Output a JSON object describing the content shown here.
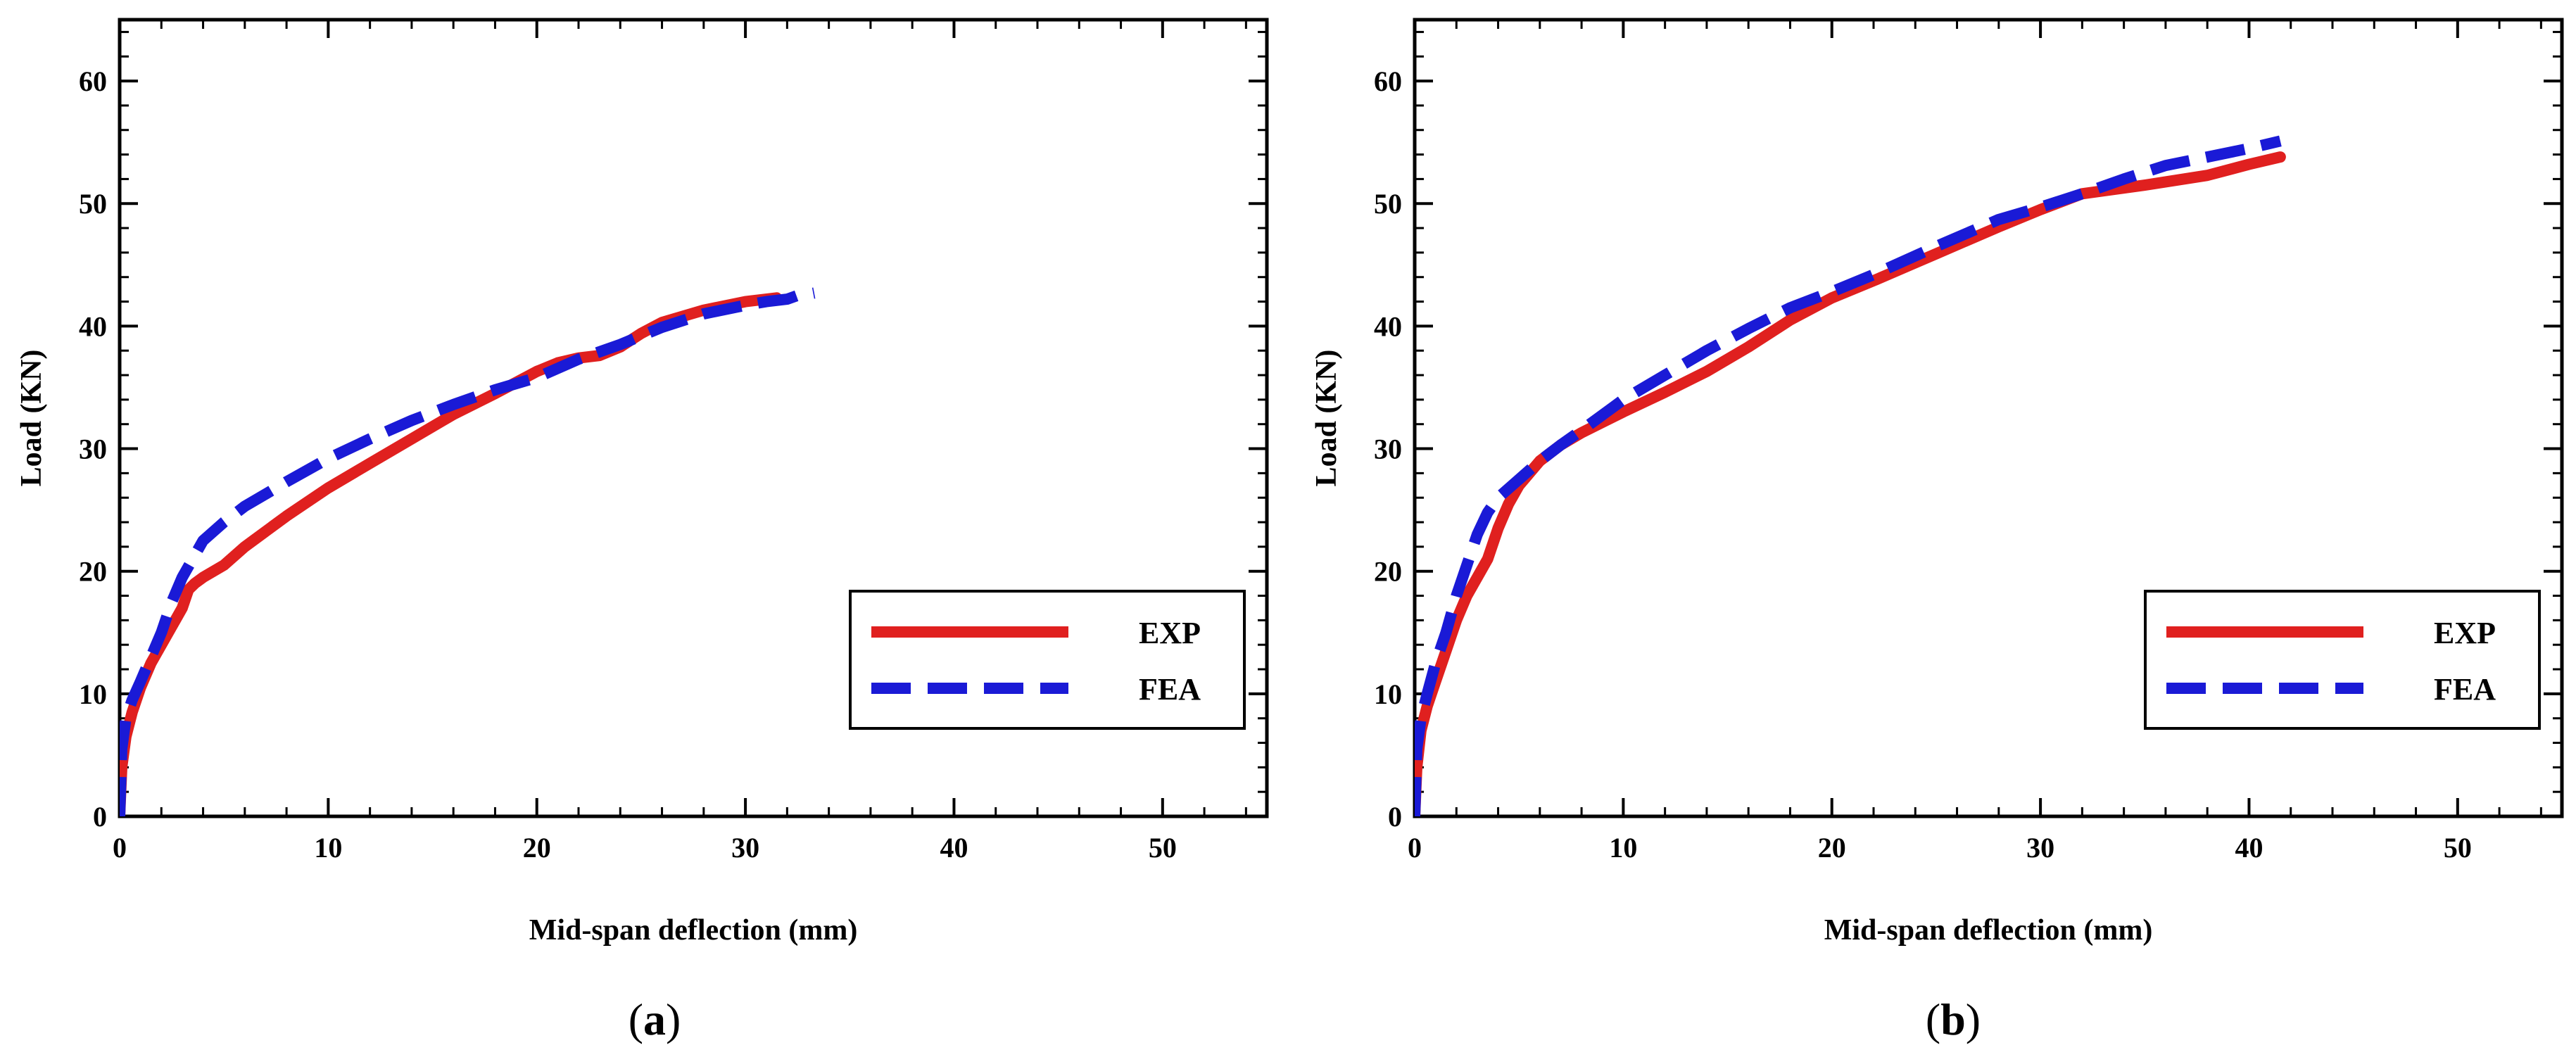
{
  "chart_data": [
    {
      "type": "line",
      "caption_letter": "a",
      "caption_open": "(",
      "caption_close": ")",
      "title": "",
      "xlabel": "Mid-span deflection (mm)",
      "ylabel": "Load (KN)",
      "xlim": [
        0,
        55
      ],
      "ylim": [
        0,
        65
      ],
      "xticks": [
        0,
        10,
        20,
        30,
        40,
        50
      ],
      "yticks": [
        0,
        10,
        20,
        30,
        40,
        50,
        60
      ],
      "legend_position": "lower-right",
      "series": [
        {
          "name": "EXP",
          "color": "#e0201f",
          "style": "solid",
          "x": [
            0,
            0.1,
            0.3,
            0.6,
            1.0,
            1.5,
            2.0,
            2.5,
            3.0,
            3.3,
            3.6,
            4.0,
            5.0,
            6.0,
            8.0,
            10.0,
            12.0,
            14.0,
            16.0,
            18.0,
            20.0,
            21.0,
            22.0,
            23.0,
            24.0,
            25.0,
            26.0,
            28.0,
            30.0,
            31.5
          ],
          "y": [
            0,
            4.0,
            6.5,
            8.5,
            10.5,
            12.5,
            14.0,
            15.5,
            17.0,
            18.5,
            19.0,
            19.5,
            20.5,
            22.0,
            24.5,
            26.8,
            28.8,
            30.8,
            32.8,
            34.5,
            36.3,
            37.0,
            37.4,
            37.6,
            38.3,
            39.4,
            40.3,
            41.3,
            42.0,
            42.3
          ]
        },
        {
          "name": "FEA",
          "color": "#1a1ad6",
          "style": "dashed",
          "x": [
            0,
            0.1,
            0.3,
            0.6,
            1.0,
            1.5,
            2.0,
            2.5,
            3.0,
            3.5,
            4.0,
            5.0,
            6.0,
            8.0,
            10.0,
            12.0,
            14.0,
            16.0,
            18.0,
            20.0,
            22.0,
            24.0,
            26.0,
            28.0,
            30.0,
            31.0,
            32.0,
            32.5,
            33.0,
            33.3
          ],
          "y": [
            0,
            5.5,
            8.0,
            9.5,
            11.0,
            13.0,
            15.0,
            17.5,
            19.5,
            21.0,
            22.5,
            24.0,
            25.3,
            27.3,
            29.2,
            30.8,
            32.3,
            33.6,
            34.8,
            35.8,
            37.3,
            38.5,
            39.9,
            41.0,
            41.7,
            42.0,
            42.2,
            42.5,
            42.6,
            42.7
          ]
        }
      ]
    },
    {
      "type": "line",
      "caption_letter": "b",
      "caption_open": "(",
      "caption_close": ")",
      "title": "",
      "xlabel": "Mid-span deflection (mm)",
      "ylabel": "Load (KN)",
      "xlim": [
        0,
        55
      ],
      "ylim": [
        0,
        65
      ],
      "xticks": [
        0,
        10,
        20,
        30,
        40,
        50
      ],
      "yticks": [
        0,
        10,
        20,
        30,
        40,
        50,
        60
      ],
      "legend_position": "lower-right",
      "series": [
        {
          "name": "EXP",
          "color": "#e0201f",
          "style": "solid",
          "x": [
            0,
            0.1,
            0.3,
            0.6,
            1.0,
            1.5,
            2.0,
            2.5,
            3.0,
            3.5,
            4.0,
            4.5,
            5.0,
            6.0,
            7.0,
            8.0,
            10.0,
            12.0,
            14.0,
            16.0,
            18.0,
            20.0,
            22.0,
            25.0,
            28.0,
            30.0,
            32.0,
            35.0,
            38.0,
            40.0,
            41.5
          ],
          "y": [
            0,
            4.0,
            7.0,
            9.0,
            11.0,
            13.5,
            16.0,
            18.0,
            19.5,
            21.0,
            23.5,
            25.5,
            27.0,
            29.0,
            30.3,
            31.3,
            33.0,
            34.6,
            36.3,
            38.3,
            40.5,
            42.3,
            43.7,
            45.9,
            48.1,
            49.5,
            50.8,
            51.5,
            52.3,
            53.2,
            53.8
          ]
        },
        {
          "name": "FEA",
          "color": "#1a1ad6",
          "style": "dashed",
          "x": [
            0,
            0.1,
            0.3,
            0.6,
            1.0,
            1.5,
            2.0,
            2.5,
            3.0,
            3.5,
            4.0,
            5.0,
            6.0,
            7.0,
            8.0,
            10.0,
            12.0,
            14.0,
            16.0,
            18.0,
            20.0,
            22.0,
            25.0,
            28.0,
            30.0,
            32.0,
            34.0,
            36.0,
            38.0,
            40.0,
            41.5
          ],
          "y": [
            0,
            5.5,
            8.0,
            10.0,
            12.5,
            15.0,
            18.0,
            20.5,
            23.0,
            24.8,
            26.0,
            27.5,
            29.0,
            30.3,
            31.5,
            34.0,
            36.0,
            38.0,
            39.8,
            41.5,
            42.8,
            44.2,
            46.5,
            48.7,
            49.7,
            50.8,
            52.0,
            53.1,
            53.8,
            54.5,
            55.1
          ]
        }
      ]
    }
  ]
}
